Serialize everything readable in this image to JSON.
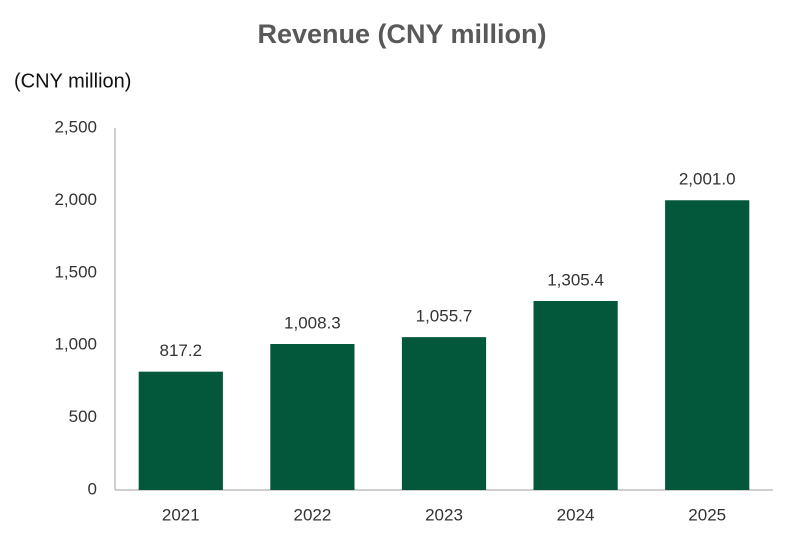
{
  "chart_data": {
    "type": "bar",
    "title": "Revenue (CNY million)",
    "y_label": "(CNY million)",
    "categories": [
      "2021",
      "2022",
      "2023",
      "2024",
      "2025"
    ],
    "values": [
      817.2,
      1008.3,
      1055.7,
      1305.4,
      2001.0
    ],
    "value_labels": [
      "817.2",
      "1,008.3",
      "1,055.7",
      "1,305.4",
      "2,001.0"
    ],
    "color": "#03583b",
    "ylim": [
      0,
      2500
    ],
    "yticks": [
      0,
      500,
      {
        "value": 1000,
        "label": "1,000"
      },
      {
        "value": 1500,
        "label": "1,500"
      },
      {
        "value": 2000,
        "label": "2,000"
      },
      {
        "value": 2500,
        "label": "2,500"
      }
    ],
    "grid": false
  }
}
